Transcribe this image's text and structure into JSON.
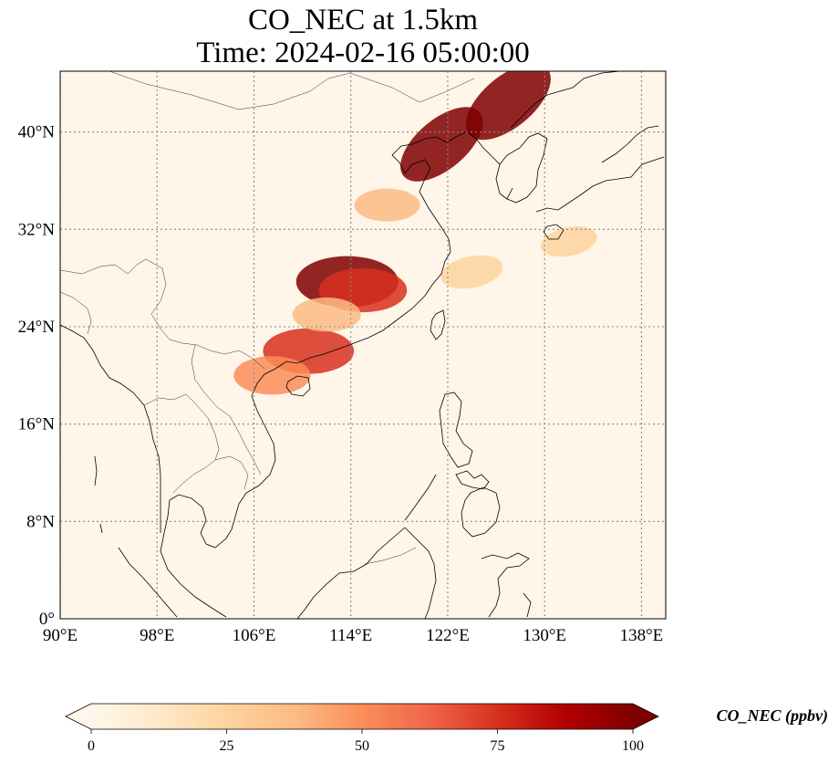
{
  "title": {
    "line1": "CO_NEC at 1.5km",
    "line2": "Time: 2024-02-16 05:00:00"
  },
  "map": {
    "projection": "PlateCarree",
    "lon_range": [
      90,
      140
    ],
    "lat_range": [
      0,
      45
    ],
    "gridlines": "dotted",
    "lon_ticks": [
      {
        "value": 90,
        "label": "90°E"
      },
      {
        "value": 98,
        "label": "98°E"
      },
      {
        "value": 106,
        "label": "106°E"
      },
      {
        "value": 114,
        "label": "114°E"
      },
      {
        "value": 122,
        "label": "122°E"
      },
      {
        "value": 130,
        "label": "130°E"
      },
      {
        "value": 138,
        "label": "138°E"
      }
    ],
    "lat_ticks": [
      {
        "value": 0,
        "label": "0°"
      },
      {
        "value": 8,
        "label": "8°N"
      },
      {
        "value": 16,
        "label": "16°N"
      },
      {
        "value": 24,
        "label": "24°N"
      },
      {
        "value": 32,
        "label": "32°N"
      },
      {
        "value": 40,
        "label": "40°N"
      }
    ],
    "colormap": "OrRd",
    "plumes": [
      {
        "lon": 127.0,
        "lat": 42.5,
        "level": 100
      },
      {
        "lon": 121.5,
        "lat": 39.0,
        "level": 95
      },
      {
        "lon": 113.7,
        "lat": 27.7,
        "level": 100
      },
      {
        "lon": 115.0,
        "lat": 27.0,
        "level": 75
      },
      {
        "lon": 110.5,
        "lat": 22.0,
        "level": 80
      },
      {
        "lon": 107.5,
        "lat": 20.0,
        "level": 55
      },
      {
        "lon": 124.0,
        "lat": 28.5,
        "level": 30
      },
      {
        "lon": 117.0,
        "lat": 34.0,
        "level": 35
      },
      {
        "lon": 132.0,
        "lat": 31.0,
        "level": 20
      },
      {
        "lon": 112.0,
        "lat": 25.0,
        "level": 40
      }
    ]
  },
  "colorbar": {
    "label": "CO_NEC (ppbv)",
    "min": 0,
    "max": 100,
    "extend": "both",
    "ticks": [
      {
        "value": 0,
        "label": "0"
      },
      {
        "value": 25,
        "label": "25"
      },
      {
        "value": 50,
        "label": "50"
      },
      {
        "value": 75,
        "label": "75"
      },
      {
        "value": 100,
        "label": "100"
      }
    ],
    "colors": [
      "#fff7ec",
      "#fee8c8",
      "#fdd49e",
      "#fdbb84",
      "#fc8d59",
      "#ef6548",
      "#d7301f",
      "#b30000",
      "#7f0000"
    ]
  }
}
